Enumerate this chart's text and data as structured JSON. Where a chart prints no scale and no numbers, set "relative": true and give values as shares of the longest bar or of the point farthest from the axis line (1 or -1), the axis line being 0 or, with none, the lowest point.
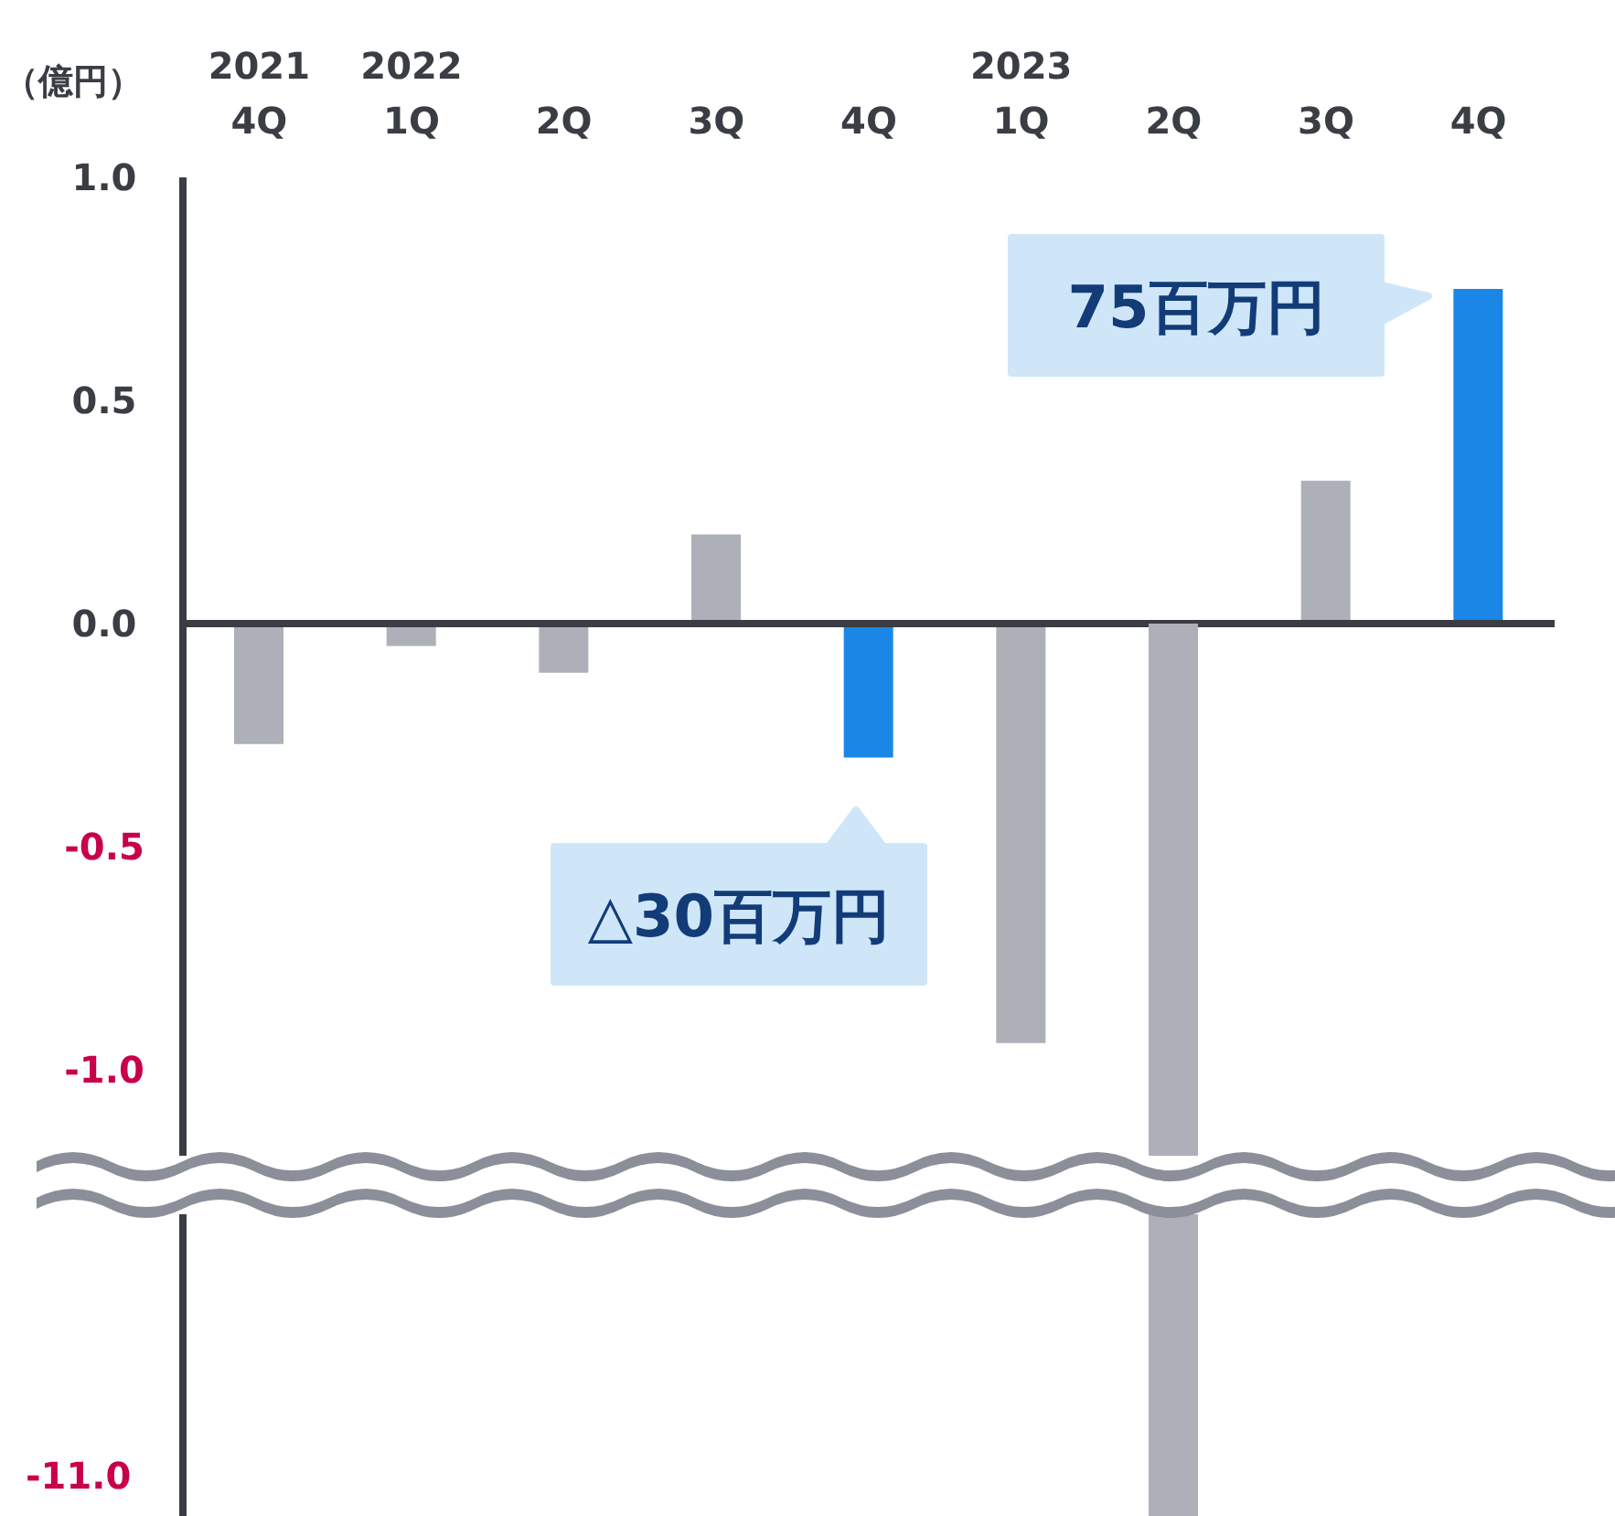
{
  "chart_data": [
    {
      "type": "bar",
      "ylabel": "（億円）",
      "categories": [
        "2021\n4Q",
        "2022\n1Q",
        "2Q",
        "3Q",
        "4Q",
        "2023\n1Q",
        "2Q",
        "3Q",
        "4Q"
      ],
      "values": [
        -0.27,
        -0.05,
        -0.11,
        0.2,
        -0.3,
        -0.94,
        null,
        0.32,
        0.75
      ],
      "colors": [
        "#adb0b8",
        "#adb0b8",
        "#adb0b8",
        "#adb0b8",
        "#1a87e6",
        "#adb0b8",
        "#adb0b8",
        "#adb0b8",
        "#1a87e6"
      ],
      "ylim": [
        -1.25,
        1.0
      ],
      "yticks": [
        {
          "value": 1.0,
          "label": "1.0"
        },
        {
          "value": 0.5,
          "label": "0.5"
        },
        {
          "value": 0,
          "label": "0.0"
        },
        {
          "value": -0.5,
          "label": "-0.5"
        },
        {
          "value": -1.0,
          "label": "-1.0"
        }
      ],
      "annotations": [
        "75百万円",
        "△30百万円"
      ]
    },
    {
      "type": "bar",
      "relative": true,
      "categories": [
        null,
        null,
        null,
        null,
        null,
        null,
        null,
        null,
        null
      ],
      "values": [
        null,
        null,
        null,
        null,
        null,
        null,
        -1,
        null,
        null
      ],
      "colors": [
        "#adb0b8",
        "#adb0b8",
        "#adb0b8",
        "#adb0b8",
        "#adb0b8",
        "#adb0b8",
        "#adb0b8",
        "#adb0b8",
        "#adb0b8"
      ],
      "annotations": [
        "-11.0"
      ]
    }
  ]
}
